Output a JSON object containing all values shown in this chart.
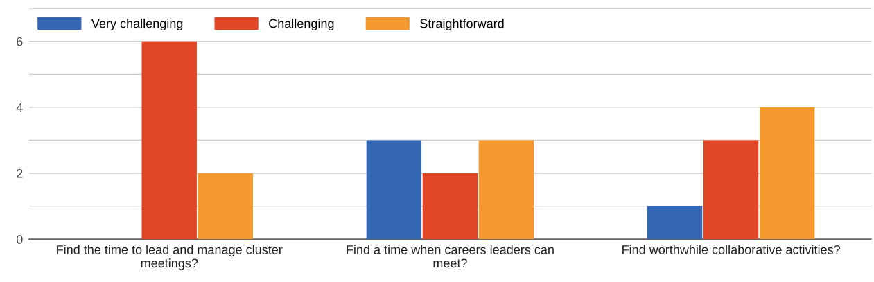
{
  "chart_data": {
    "type": "bar",
    "categories": [
      "Find the time to lead and manage cluster\nmeetings?",
      "Find a time when careers leaders can\nmeet?",
      "Find worthwhile collaborative activities?"
    ],
    "series": [
      {
        "name": "Very challenging",
        "color": "#3366b3",
        "values": [
          0,
          3,
          1
        ]
      },
      {
        "name": "Challenging",
        "color": "#e14726",
        "values": [
          6,
          2,
          3
        ]
      },
      {
        "name": "Straightforward",
        "color": "#f5992e",
        "values": [
          2,
          3,
          4
        ]
      }
    ],
    "ylim": [
      0,
      7
    ],
    "yticks": [
      0,
      {
        "value": 1,
        "label": null
      },
      2,
      {
        "value": 3,
        "label": null
      },
      4,
      {
        "value": 5,
        "label": null
      },
      6,
      {
        "value": 7,
        "label": null
      }
    ],
    "grid": "y",
    "legend": "top left"
  }
}
